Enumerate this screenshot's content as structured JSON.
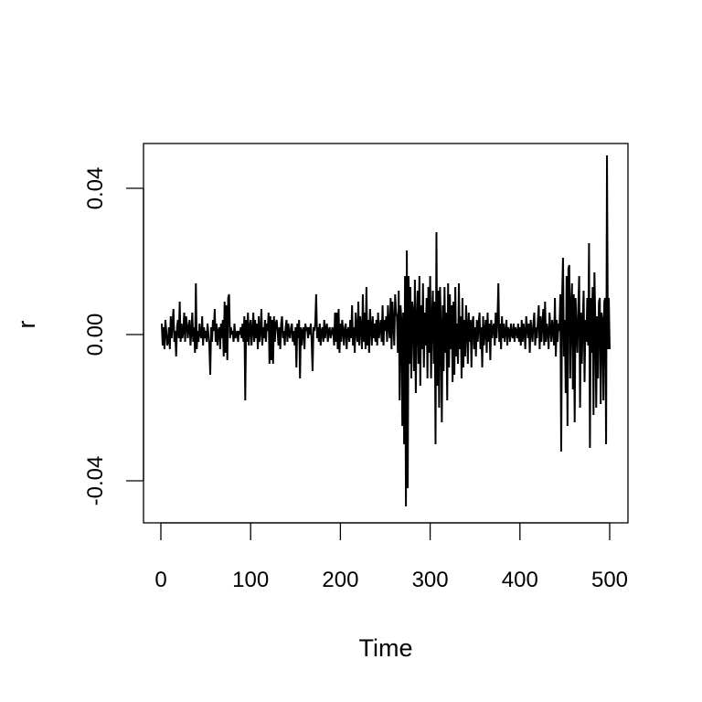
{
  "chart_data": {
    "type": "line",
    "title": "",
    "xlabel": "Time",
    "ylabel": "r",
    "xlim": [
      0,
      500
    ],
    "ylim": [
      -0.05,
      0.05
    ],
    "x_ticks": [
      0,
      100,
      200,
      300,
      400,
      500
    ],
    "x_tick_labels": [
      "0",
      "100",
      "200",
      "300",
      "400",
      "500"
    ],
    "y_ticks": [
      -0.04,
      0.0,
      0.04
    ],
    "y_tick_labels": [
      "-0.04",
      "0.00",
      "0.04"
    ],
    "grid": false,
    "line_color": "#000000",
    "x_start": 1,
    "values": [
      0.003,
      -0.003,
      0.002,
      -0.004,
      0.004,
      0.001,
      -0.003,
      -0.002,
      0.002,
      -0.004,
      0.005,
      -0.001,
      0.003,
      0.007,
      -0.002,
      0.001,
      -0.006,
      0.002,
      0.004,
      -0.001,
      0.009,
      -0.002,
      0.003,
      -0.001,
      0.001,
      0.006,
      -0.002,
      0.005,
      0.003,
      -0.001,
      0.002,
      0.004,
      -0.003,
      0.001,
      0.006,
      -0.002,
      0.002,
      -0.005,
      0.014,
      -0.004,
      0.001,
      -0.002,
      0.003,
      0.0,
      -0.001,
      0.005,
      -0.003,
      0.002,
      -0.001,
      0.001,
      -0.002,
      0.003,
      0.0,
      -0.003,
      -0.011,
      0.002,
      -0.002,
      0.004,
      0.001,
      0.007,
      -0.002,
      0.003,
      -0.003,
      0.001,
      0.002,
      -0.004,
      0.003,
      -0.001,
      0.004,
      -0.006,
      0.009,
      -0.005,
      0.008,
      -0.007,
      0.01,
      0.011,
      -0.001,
      0.002,
      0.0,
      0.001,
      -0.002,
      0.003,
      -0.001,
      0.0,
      0.001,
      -0.002,
      0.001,
      0.0,
      0.002,
      -0.001,
      0.003,
      -0.002,
      0.005,
      -0.018,
      0.004,
      -0.002,
      0.006,
      -0.003,
      0.002,
      0.004,
      -0.003,
      0.001,
      0.006,
      -0.002,
      0.004,
      -0.001,
      0.003,
      -0.004,
      0.005,
      -0.002,
      0.001,
      0.007,
      -0.003,
      0.002,
      -0.001,
      0.004,
      -0.002,
      0.003,
      0.001,
      0.006,
      -0.008,
      0.005,
      -0.007,
      0.004,
      -0.008,
      0.005,
      -0.002,
      0.003,
      0.004,
      0.001,
      -0.003,
      0.002,
      -0.004,
      0.003,
      0.005,
      -0.001,
      0.001,
      -0.003,
      0.002,
      0.004,
      -0.002,
      0.003,
      0.0,
      -0.001,
      0.002,
      0.003,
      -0.002,
      0.001,
      -0.003,
      0.002,
      -0.009,
      0.003,
      -0.001,
      0.004,
      -0.012,
      0.002,
      -0.003,
      0.001,
      0.002,
      -0.004,
      0.003,
      0.001,
      0.002,
      -0.001,
      0.002,
      0.0,
      0.003,
      -0.002,
      -0.01,
      0.002,
      0.001,
      0.003,
      0.011,
      -0.001,
      0.002,
      -0.002,
      0.003,
      -0.003,
      0.001,
      0.002,
      -0.002,
      0.004,
      -0.001,
      0.002,
      0.003,
      -0.002,
      0.001,
      0.002,
      -0.001,
      0.0,
      0.002,
      0.001,
      -0.003,
      0.006,
      -0.002,
      0.006,
      -0.004,
      0.007,
      -0.005,
      0.003,
      -0.002,
      0.004,
      0.001,
      -0.003,
      0.002,
      0.003,
      -0.004,
      0.001,
      0.002,
      -0.002,
      0.004,
      -0.001,
      0.008,
      -0.003,
      0.002,
      -0.005,
      0.006,
      0.001,
      -0.002,
      0.009,
      -0.003,
      0.005,
      0.002,
      -0.004,
      0.011,
      -0.002,
      0.006,
      -0.004,
      0.013,
      -0.003,
      0.004,
      -0.005,
      0.007,
      0.002,
      -0.003,
      0.005,
      -0.001,
      0.003,
      -0.002,
      0.004,
      -0.003,
      0.006,
      -0.001,
      0.002,
      0.004,
      -0.002,
      0.008,
      -0.003,
      0.004,
      0.001,
      0.005,
      -0.002,
      0.008,
      0.002,
      -0.001,
      0.01,
      -0.004,
      0.009,
      0.003,
      -0.003,
      0.011,
      0.006,
      0.005,
      -0.005,
      0.012,
      -0.018,
      0.008,
      0.004,
      -0.025,
      0.006,
      -0.03,
      0.016,
      -0.047,
      0.023,
      -0.042,
      0.016,
      -0.008,
      0.013,
      -0.012,
      0.009,
      0.006,
      -0.01,
      0.015,
      -0.016,
      0.004,
      0.012,
      -0.008,
      0.016,
      -0.014,
      0.008,
      -0.004,
      0.014,
      -0.009,
      0.006,
      -0.003,
      0.01,
      -0.012,
      0.013,
      -0.005,
      0.016,
      -0.012,
      0.004,
      0.012,
      -0.008,
      0.009,
      -0.03,
      0.028,
      -0.014,
      0.012,
      -0.02,
      0.013,
      0.002,
      -0.024,
      0.008,
      -0.01,
      0.013,
      -0.005,
      0.006,
      -0.018,
      0.014,
      -0.009,
      0.011,
      -0.004,
      0.008,
      -0.013,
      0.009,
      -0.011,
      0.013,
      -0.006,
      0.003,
      -0.008,
      0.014,
      -0.004,
      0.005,
      -0.012,
      0.01,
      -0.009,
      0.004,
      -0.006,
      0.008,
      0.002,
      -0.008,
      0.006,
      -0.002,
      0.004,
      -0.009,
      0.003,
      0.005,
      -0.004,
      0.002,
      -0.006,
      0.004,
      -0.002,
      0.003,
      0.006,
      -0.004,
      0.002,
      -0.009,
      0.005,
      -0.003,
      0.001,
      0.004,
      -0.005,
      0.006,
      -0.002,
      0.003,
      -0.007,
      0.004,
      -0.001,
      0.002,
      0.003,
      -0.003,
      0.006,
      -0.001,
      0.004,
      0.014,
      -0.002,
      0.003,
      -0.004,
      0.005,
      -0.001,
      0.003,
      -0.002,
      0.001,
      0.004,
      -0.003,
      0.002,
      0.001,
      -0.002,
      0.003,
      0.0,
      -0.001,
      0.003,
      -0.002,
      0.002,
      0.001,
      -0.001,
      0.003,
      -0.002,
      0.002,
      -0.003,
      0.004,
      -0.002,
      0.003,
      0.001,
      -0.004,
      0.005,
      0.002,
      -0.001,
      0.003,
      -0.005,
      0.004,
      0.001,
      -0.002,
      0.003,
      0.006,
      -0.003,
      0.002,
      -0.001,
      0.004,
      0.008,
      -0.004,
      0.005,
      -0.002,
      0.003,
      0.007,
      -0.003,
      0.009,
      -0.002,
      0.003,
      0.001,
      -0.004,
      0.006,
      0.002,
      -0.002,
      0.004,
      0.001,
      -0.003,
      0.01,
      -0.006,
      0.004,
      -0.002,
      0.003,
      0.001,
      0.011,
      -0.032,
      0.01,
      0.021,
      -0.006,
      0.004,
      -0.016,
      0.016,
      -0.025,
      0.018,
      0.019,
      -0.012,
      0.008,
      0.014,
      -0.015,
      0.011,
      -0.024,
      0.01,
      0.002,
      -0.005,
      0.007,
      0.016,
      -0.02,
      0.006,
      -0.008,
      0.004,
      0.012,
      -0.013,
      0.004,
      -0.002,
      0.01,
      -0.003,
      0.025,
      -0.031,
      0.01,
      -0.005,
      0.013,
      -0.022,
      0.017,
      0.004,
      -0.02,
      0.005,
      -0.012,
      0.009,
      0.01,
      -0.019,
      0.006,
      0.004,
      -0.018,
      0.009,
      0.01,
      -0.03,
      0.049,
      -0.004,
      0.01,
      -0.004
    ]
  }
}
